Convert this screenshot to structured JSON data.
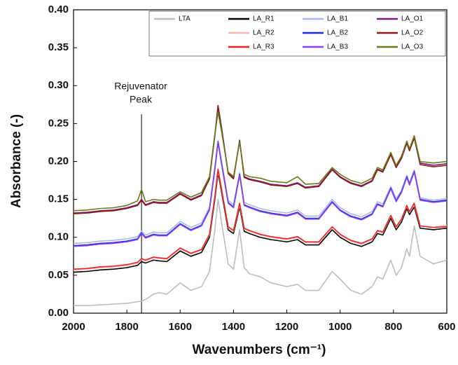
{
  "chart_data": {
    "type": "line",
    "x_label": "Wavenumbers (cm⁻¹)",
    "y_label": "Absorbance (-)",
    "xlim": [
      2000,
      600
    ],
    "xticks": [
      2000,
      1800,
      1600,
      1400,
      1200,
      1000,
      800,
      600
    ],
    "ylim": [
      0,
      0.4
    ],
    "yticks": [
      {
        "value": 0,
        "label": "0.00"
      },
      {
        "value": 0.05,
        "label": "0.05"
      },
      {
        "value": 0.1,
        "label": "0.10"
      },
      {
        "value": 0.15,
        "label": "0.15"
      },
      {
        "value": 0.2,
        "label": "0.20"
      },
      {
        "value": 0.25,
        "label": "0.25"
      },
      {
        "value": 0.3,
        "label": "0.30"
      },
      {
        "value": 0.35,
        "label": "0.35"
      },
      {
        "value": 0.4,
        "label": "0.40"
      }
    ],
    "annotation": {
      "text": [
        "Rejuvenator",
        "Peak"
      ],
      "x": 1745
    },
    "x": [
      2000,
      1950,
      1900,
      1850,
      1800,
      1760,
      1745,
      1730,
      1700,
      1680,
      1650,
      1600,
      1560,
      1520,
      1490,
      1470,
      1458,
      1445,
      1420,
      1400,
      1377,
      1360,
      1340,
      1300,
      1260,
      1200,
      1160,
      1130,
      1080,
      1030,
      1000,
      960,
      920,
      880,
      860,
      840,
      810,
      790,
      770,
      750,
      740,
      722,
      700,
      650,
      600
    ],
    "series": [
      {
        "name": "LTA",
        "color": "#bdbdbd",
        "values": [
          0.01,
          0.01,
          0.011,
          0.012,
          0.013,
          0.015,
          0.016,
          0.018,
          0.025,
          0.027,
          0.025,
          0.04,
          0.03,
          0.035,
          0.055,
          0.11,
          0.15,
          0.12,
          0.065,
          0.058,
          0.11,
          0.06,
          0.052,
          0.048,
          0.04,
          0.035,
          0.038,
          0.03,
          0.03,
          0.055,
          0.045,
          0.03,
          0.025,
          0.035,
          0.048,
          0.045,
          0.07,
          0.05,
          0.06,
          0.085,
          0.075,
          0.115,
          0.075,
          0.065,
          0.07
        ]
      },
      {
        "name": "LA_R1",
        "color": "#000000",
        "values": [
          0.054,
          0.055,
          0.057,
          0.058,
          0.06,
          0.063,
          0.068,
          0.066,
          0.07,
          0.069,
          0.068,
          0.082,
          0.075,
          0.08,
          0.1,
          0.15,
          0.185,
          0.16,
          0.11,
          0.105,
          0.14,
          0.108,
          0.105,
          0.1,
          0.097,
          0.094,
          0.097,
          0.09,
          0.09,
          0.11,
          0.1,
          0.092,
          0.088,
          0.094,
          0.105,
          0.103,
          0.125,
          0.11,
          0.12,
          0.138,
          0.13,
          0.14,
          0.112,
          0.11,
          0.112
        ]
      },
      {
        "name": "LA_R2",
        "color": "#f4b4b4",
        "values": [
          0.057,
          0.058,
          0.06,
          0.061,
          0.063,
          0.066,
          0.071,
          0.069,
          0.073,
          0.072,
          0.071,
          0.085,
          0.078,
          0.083,
          0.103,
          0.153,
          0.188,
          0.163,
          0.113,
          0.108,
          0.143,
          0.111,
          0.108,
          0.103,
          0.1,
          0.097,
          0.1,
          0.093,
          0.093,
          0.113,
          0.103,
          0.095,
          0.091,
          0.097,
          0.108,
          0.106,
          0.128,
          0.113,
          0.123,
          0.141,
          0.133,
          0.143,
          0.115,
          0.113,
          0.116
        ]
      },
      {
        "name": "LA_R3",
        "color": "#ee2222",
        "values": [
          0.058,
          0.059,
          0.061,
          0.062,
          0.064,
          0.067,
          0.072,
          0.07,
          0.074,
          0.073,
          0.072,
          0.086,
          0.079,
          0.084,
          0.104,
          0.154,
          0.19,
          0.164,
          0.114,
          0.109,
          0.145,
          0.112,
          0.109,
          0.104,
          0.101,
          0.098,
          0.101,
          0.094,
          0.094,
          0.114,
          0.104,
          0.096,
          0.092,
          0.098,
          0.109,
          0.107,
          0.129,
          0.114,
          0.124,
          0.142,
          0.134,
          0.145,
          0.115,
          0.113,
          0.114
        ]
      },
      {
        "name": "LA_B1",
        "color": "#a9b8f0",
        "values": [
          0.092,
          0.093,
          0.095,
          0.096,
          0.098,
          0.101,
          0.108,
          0.103,
          0.107,
          0.106,
          0.106,
          0.121,
          0.113,
          0.119,
          0.14,
          0.193,
          0.228,
          0.201,
          0.149,
          0.143,
          0.185,
          0.146,
          0.143,
          0.138,
          0.135,
          0.132,
          0.136,
          0.128,
          0.128,
          0.15,
          0.139,
          0.131,
          0.127,
          0.134,
          0.147,
          0.144,
          0.167,
          0.151,
          0.162,
          0.182,
          0.172,
          0.189,
          0.152,
          0.149,
          0.151
        ]
      },
      {
        "name": "LA_B2",
        "color": "#1a2ee0",
        "values": [
          0.089,
          0.09,
          0.092,
          0.093,
          0.095,
          0.098,
          0.106,
          0.1,
          0.104,
          0.103,
          0.103,
          0.118,
          0.11,
          0.116,
          0.137,
          0.19,
          0.226,
          0.198,
          0.146,
          0.14,
          0.183,
          0.143,
          0.14,
          0.135,
          0.132,
          0.129,
          0.133,
          0.125,
          0.125,
          0.147,
          0.136,
          0.128,
          0.124,
          0.131,
          0.144,
          0.141,
          0.165,
          0.148,
          0.16,
          0.18,
          0.17,
          0.187,
          0.15,
          0.147,
          0.149
        ]
      },
      {
        "name": "LA_B3",
        "color": "#8a3ff0",
        "values": [
          0.088,
          0.089,
          0.091,
          0.092,
          0.094,
          0.097,
          0.105,
          0.099,
          0.103,
          0.102,
          0.102,
          0.117,
          0.109,
          0.115,
          0.136,
          0.189,
          0.225,
          0.197,
          0.145,
          0.139,
          0.182,
          0.142,
          0.139,
          0.134,
          0.131,
          0.128,
          0.132,
          0.124,
          0.124,
          0.146,
          0.135,
          0.127,
          0.123,
          0.13,
          0.143,
          0.14,
          0.164,
          0.147,
          0.159,
          0.179,
          0.169,
          0.186,
          0.149,
          0.146,
          0.148
        ]
      },
      {
        "name": "LA_O1",
        "color": "#7a1a7a",
        "values": [
          0.132,
          0.133,
          0.135,
          0.136,
          0.139,
          0.143,
          0.15,
          0.143,
          0.147,
          0.146,
          0.146,
          0.158,
          0.15,
          0.156,
          0.178,
          0.235,
          0.274,
          0.245,
          0.185,
          0.178,
          0.228,
          0.18,
          0.177,
          0.174,
          0.17,
          0.168,
          0.172,
          0.166,
          0.168,
          0.19,
          0.18,
          0.172,
          0.168,
          0.175,
          0.19,
          0.187,
          0.21,
          0.193,
          0.205,
          0.225,
          0.215,
          0.232,
          0.198,
          0.195,
          0.197
        ]
      },
      {
        "name": "LA_O2",
        "color": "#8b1a1a",
        "values": [
          0.131,
          0.132,
          0.134,
          0.135,
          0.138,
          0.142,
          0.149,
          0.142,
          0.146,
          0.145,
          0.145,
          0.157,
          0.149,
          0.155,
          0.177,
          0.234,
          0.272,
          0.244,
          0.184,
          0.177,
          0.227,
          0.179,
          0.176,
          0.173,
          0.169,
          0.167,
          0.171,
          0.165,
          0.167,
          0.189,
          0.179,
          0.171,
          0.167,
          0.174,
          0.189,
          0.186,
          0.209,
          0.192,
          0.204,
          0.224,
          0.214,
          0.231,
          0.196,
          0.193,
          0.195
        ]
      },
      {
        "name": "LA_O3",
        "color": "#6b7a1a",
        "values": [
          0.135,
          0.136,
          0.138,
          0.139,
          0.142,
          0.148,
          0.163,
          0.147,
          0.15,
          0.149,
          0.149,
          0.16,
          0.153,
          0.159,
          0.18,
          0.236,
          0.265,
          0.24,
          0.186,
          0.18,
          0.226,
          0.183,
          0.18,
          0.178,
          0.174,
          0.172,
          0.18,
          0.17,
          0.171,
          0.192,
          0.183,
          0.175,
          0.171,
          0.178,
          0.192,
          0.189,
          0.212,
          0.195,
          0.207,
          0.227,
          0.217,
          0.234,
          0.2,
          0.198,
          0.2
        ]
      }
    ]
  }
}
